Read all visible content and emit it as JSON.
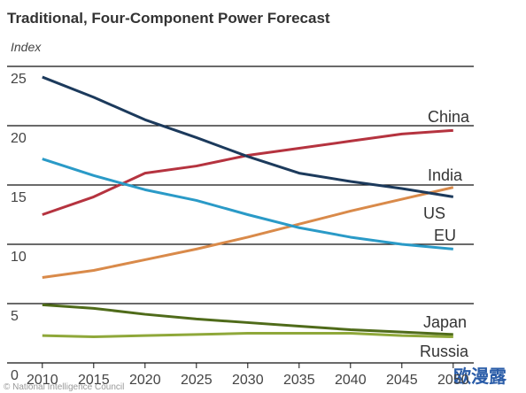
{
  "chart_data": {
    "type": "line",
    "title": "Traditional, Four-Component Power Forecast",
    "y_label": "Index",
    "source": "© National Intelligence Council",
    "watermark": "欧漫露",
    "x": [
      2010,
      2015,
      2020,
      2025,
      2030,
      2035,
      2040,
      2045,
      2050
    ],
    "xlim": [
      2007,
      2052
    ],
    "xticks": [
      2010,
      2015,
      2020,
      2025,
      2030,
      2035,
      2040,
      2045,
      2050
    ],
    "ylim": [
      0,
      25.5
    ],
    "yticks": [
      0,
      5,
      10,
      15,
      20,
      25
    ],
    "grid": true,
    "series": [
      {
        "name": "China",
        "color": "#b5333f",
        "values": [
          12.5,
          14.0,
          16.0,
          16.6,
          17.5,
          18.1,
          18.7,
          19.3,
          19.6
        ]
      },
      {
        "name": "India",
        "color": "#d98a4a",
        "values": [
          7.2,
          7.8,
          8.7,
          9.6,
          10.6,
          11.7,
          12.8,
          13.8,
          14.8
        ]
      },
      {
        "name": "US",
        "color": "#1c3a5c",
        "values": [
          24.1,
          22.4,
          20.5,
          19.0,
          17.4,
          16.0,
          15.3,
          14.7,
          14.0
        ]
      },
      {
        "name": "EU",
        "color": "#2a9ac7",
        "values": [
          17.2,
          15.8,
          14.6,
          13.7,
          12.5,
          11.4,
          10.6,
          10.0,
          9.6
        ]
      },
      {
        "name": "Japan",
        "color": "#4f6b1a",
        "values": [
          4.9,
          4.6,
          4.1,
          3.7,
          3.4,
          3.1,
          2.8,
          2.6,
          2.4
        ]
      },
      {
        "name": "Russia",
        "color": "#8fa83a",
        "values": [
          2.3,
          2.2,
          2.3,
          2.4,
          2.5,
          2.5,
          2.5,
          2.3,
          2.2
        ]
      }
    ]
  }
}
